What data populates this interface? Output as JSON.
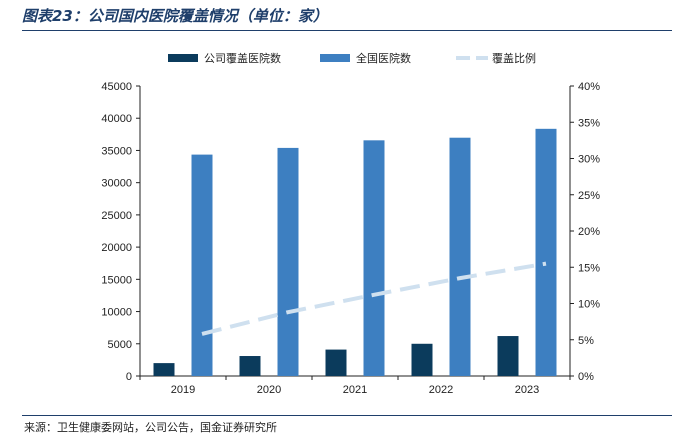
{
  "title": "图表23：公司国内医院覆盖情况（单位：家）",
  "source": "来源：卫生健康委网站，公司公告，国金证券研究所",
  "chart_data": {
    "type": "bar",
    "categories": [
      "2019",
      "2020",
      "2021",
      "2022",
      "2023"
    ],
    "series": [
      {
        "name": "公司覆盖医院数",
        "kind": "bar",
        "color": "#0b3b5c",
        "axis": "left",
        "values": [
          2000,
          3100,
          4100,
          5000,
          6200
        ]
      },
      {
        "name": "全国医院数",
        "kind": "bar",
        "color": "#3d7fc1",
        "axis": "left",
        "values": [
          34354,
          35394,
          36570,
          36976,
          38355
        ]
      },
      {
        "name": "覆盖比例",
        "kind": "line",
        "color": "#cfe0ef",
        "axis": "right",
        "values": [
          0.058,
          0.088,
          0.112,
          0.135,
          0.155
        ]
      }
    ],
    "y_left": {
      "ylim": [
        0,
        45000
      ],
      "ticks": [
        "0",
        "5000",
        "10000",
        "15000",
        "20000",
        "25000",
        "30000",
        "35000",
        "40000",
        "45000"
      ]
    },
    "y_right": {
      "ylim": [
        0,
        0.4
      ],
      "ticks": [
        "0%",
        "5%",
        "10%",
        "15%",
        "20%",
        "25%",
        "30%",
        "35%",
        "40%"
      ]
    },
    "legend_placement": "top-center",
    "grid": false
  }
}
